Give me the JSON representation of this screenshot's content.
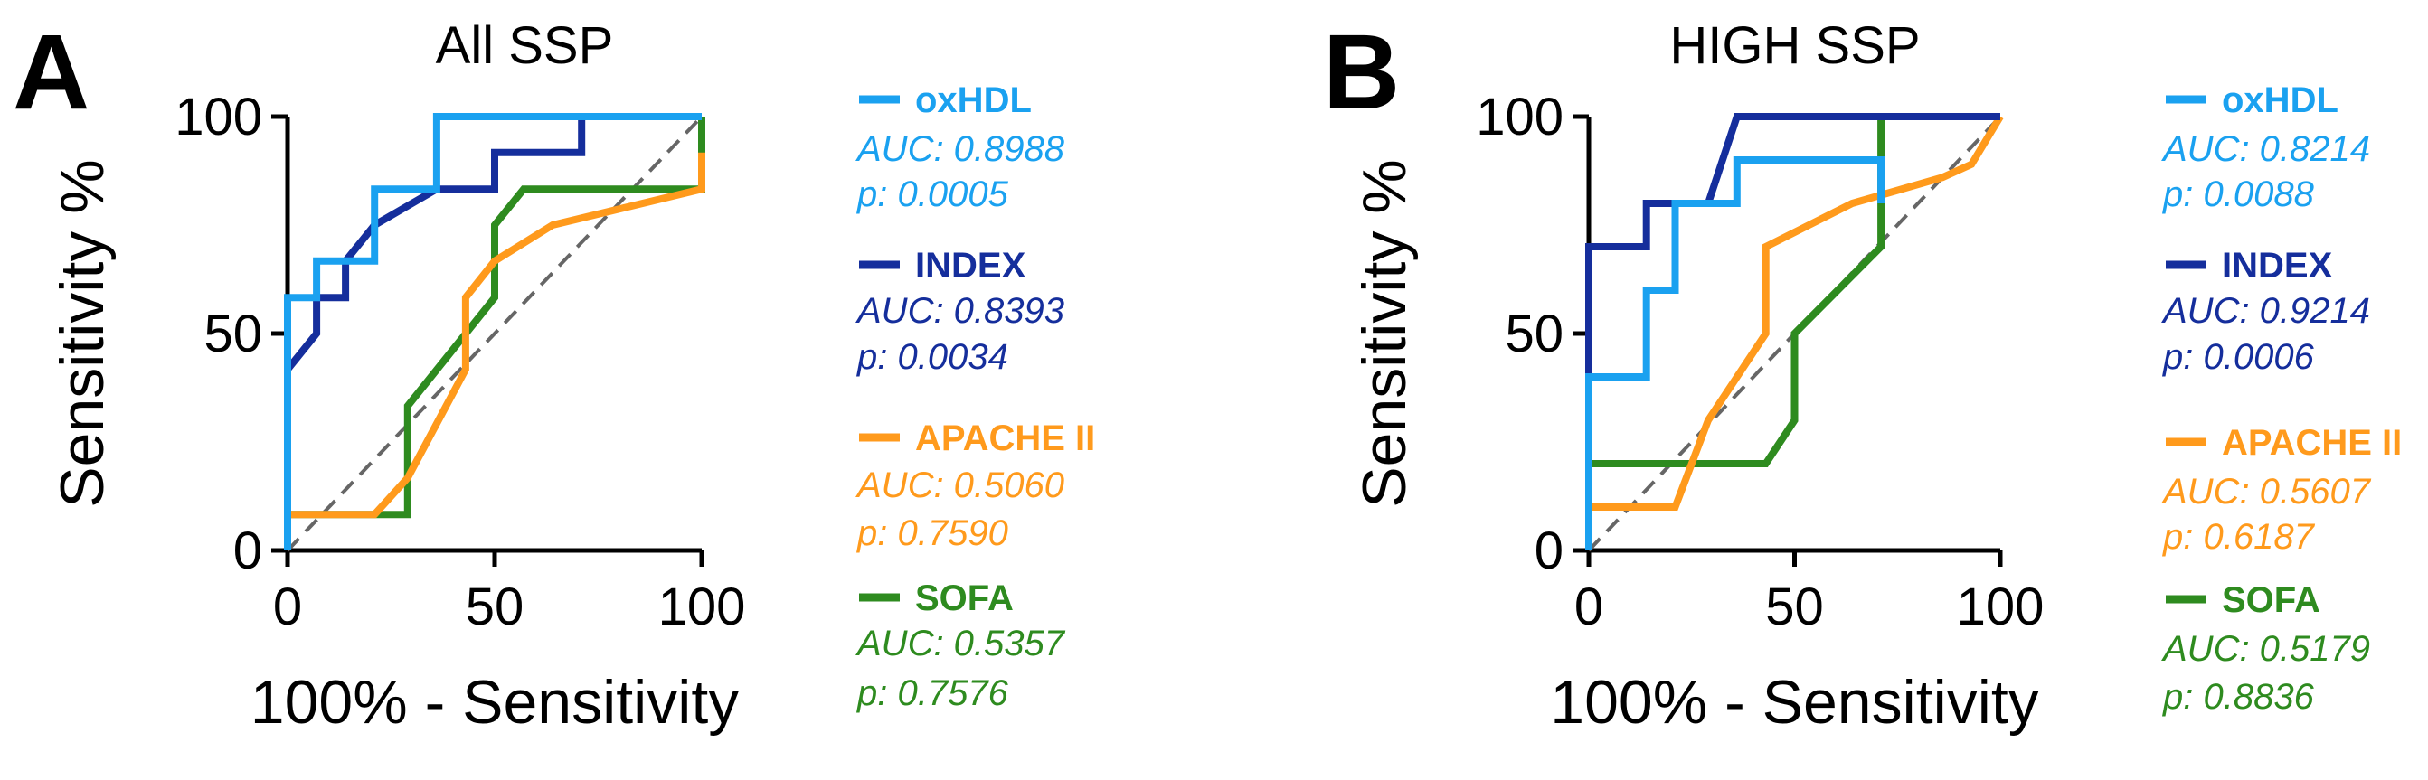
{
  "colors": {
    "oxHDL": "#1aa1f0",
    "INDEX": "#152e9c",
    "APACHE II": "#ff9a1c",
    "SOFA": "#2e8b1f",
    "reference": "#666666",
    "axis": "#000000"
  },
  "chart_data": [
    {
      "type": "line",
      "panel": "A",
      "title": "All SSP",
      "xlabel": "100% - Sensitivity",
      "ylabel": "Sensitivity %",
      "xlim": [
        0,
        100
      ],
      "ylim": [
        0,
        100
      ],
      "xticks": [
        "0",
        "50",
        "100"
      ],
      "yticks": [
        "0",
        "50",
        "100"
      ],
      "reference_line": true,
      "series": [
        {
          "name": "oxHDL",
          "auc": "AUC: 0.8988",
          "p": "p: 0.0005",
          "x": [
            0,
            0,
            7,
            7,
            21,
            21,
            36,
            36,
            100
          ],
          "y": [
            0,
            58.3,
            58.3,
            66.7,
            66.7,
            83.3,
            83.3,
            100,
            100
          ]
        },
        {
          "name": "INDEX",
          "auc": "AUC: 0.8393",
          "p": "p: 0.0034",
          "x": [
            0,
            0,
            7,
            7,
            14,
            14,
            21,
            36,
            50,
            50,
            71,
            71,
            100
          ],
          "y": [
            0,
            41.7,
            50,
            58.3,
            58.3,
            66.7,
            75,
            83.3,
            83.3,
            91.7,
            91.7,
            100,
            100
          ]
        },
        {
          "name": "APACHE II",
          "auc": "AUC: 0.5060",
          "p": "p: 0.7590",
          "x": [
            0,
            21,
            29,
            43,
            43,
            50,
            64,
            100,
            100
          ],
          "y": [
            8.3,
            8.3,
            16.7,
            41.7,
            58.3,
            66.7,
            75,
            83.3,
            91.7
          ]
        },
        {
          "name": "SOFA",
          "auc": "AUC: 0.5357",
          "p": "p: 0.7576",
          "x": [
            0,
            29,
            29,
            50,
            50,
            57,
            100,
            100
          ],
          "y": [
            8.3,
            8.3,
            33.3,
            58.3,
            75,
            83.3,
            83.3,
            100
          ]
        }
      ]
    },
    {
      "type": "line",
      "panel": "B",
      "title": "HIGH SSP",
      "xlabel": "100% - Sensitivity",
      "ylabel": "Sensitivity %",
      "xlim": [
        0,
        100
      ],
      "ylim": [
        0,
        100
      ],
      "xticks": [
        "0",
        "50",
        "100"
      ],
      "yticks": [
        "0",
        "50",
        "100"
      ],
      "reference_line": true,
      "series": [
        {
          "name": "oxHDL",
          "auc": "AUC: 0.8214",
          "p": "p: 0.0088",
          "x": [
            0,
            0,
            14,
            14,
            21,
            21,
            36,
            36,
            71,
            71
          ],
          "y": [
            0,
            40,
            40,
            60,
            60,
            80,
            80,
            90,
            90,
            80
          ]
        },
        {
          "name": "INDEX",
          "auc": "AUC: 0.9214",
          "p": "p: 0.0006",
          "x": [
            0,
            0,
            7,
            7,
            14,
            14,
            21,
            29,
            36,
            100
          ],
          "y": [
            0,
            70,
            70,
            70,
            70,
            80,
            80,
            80,
            100,
            100
          ]
        },
        {
          "name": "APACHE II",
          "auc": "AUC: 0.5607",
          "p": "p: 0.6187",
          "x": [
            0,
            0,
            21,
            29,
            43,
            43,
            64,
            86,
            93,
            100
          ],
          "y": [
            0,
            10,
            10,
            30,
            50,
            70,
            80,
            86,
            89,
            100
          ]
        },
        {
          "name": "SOFA",
          "auc": "AUC: 0.5179",
          "p": "p: 0.8836",
          "x": [
            0,
            0,
            43,
            50,
            50,
            71,
            71,
            71
          ],
          "y": [
            0,
            20,
            20,
            30,
            50,
            70,
            75,
            100
          ]
        }
      ]
    }
  ]
}
